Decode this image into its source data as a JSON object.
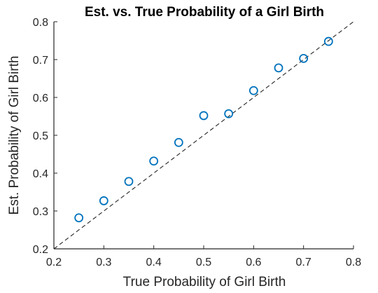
{
  "colors": {
    "marker": "#0072bd",
    "axis": "#262626",
    "reference_line": "#262626",
    "background": "#ffffff"
  },
  "chart_data": {
    "type": "scatter",
    "title": "Est. vs. True Probability of a Girl Birth",
    "xlabel": "True Probability of Girl Birth",
    "ylabel": "Est. Probability of Girl Birth",
    "xlim": [
      0.2,
      0.8
    ],
    "ylim": [
      0.2,
      0.8
    ],
    "xticks": [
      0.2,
      0.3,
      0.4,
      0.5,
      0.6,
      0.7,
      0.8
    ],
    "yticks": [
      0.2,
      0.3,
      0.4,
      0.5,
      0.6,
      0.7,
      0.8
    ],
    "xtick_labels": [
      "0.2",
      "0.3",
      "0.4",
      "0.5",
      "0.6",
      "0.7",
      "0.8"
    ],
    "ytick_labels": [
      "0.2",
      "0.3",
      "0.4",
      "0.5",
      "0.6",
      "0.7",
      "0.8"
    ],
    "grid": false,
    "marker": "open-circle",
    "reference_line": {
      "style": "dashed",
      "from": [
        0.2,
        0.2
      ],
      "to": [
        0.8,
        0.8
      ]
    },
    "series": [
      {
        "x": [
          0.25,
          0.3,
          0.35,
          0.4,
          0.45,
          0.5,
          0.55,
          0.6,
          0.65,
          0.7,
          0.75
        ],
        "y": [
          0.282,
          0.327,
          0.378,
          0.432,
          0.481,
          0.552,
          0.557,
          0.618,
          0.678,
          0.703,
          0.748
        ]
      }
    ]
  }
}
